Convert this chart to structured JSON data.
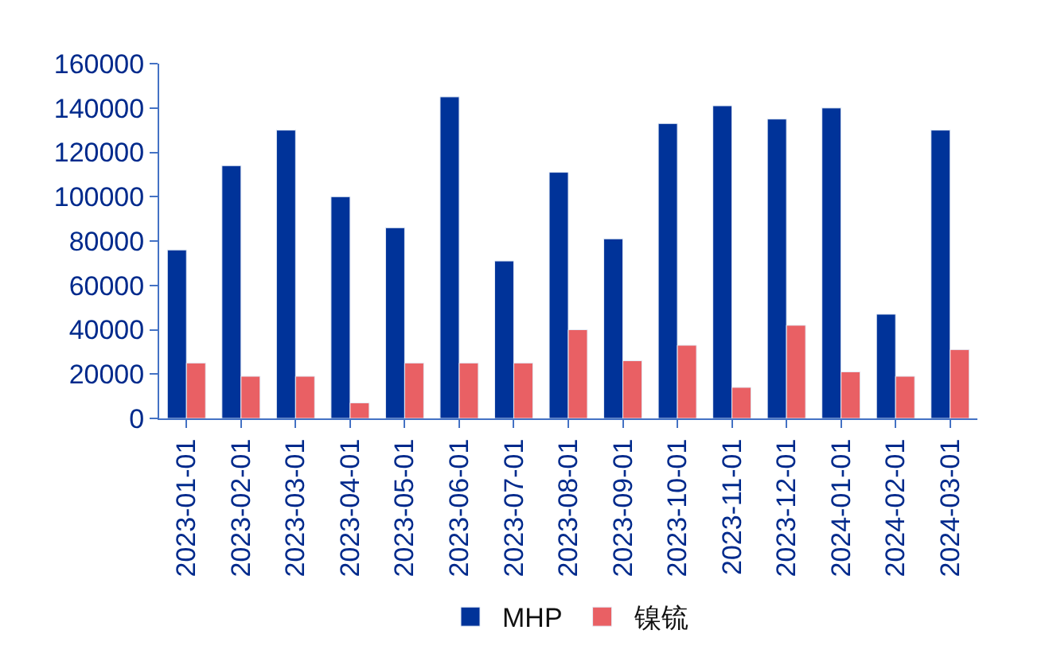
{
  "chart_data": {
    "type": "bar",
    "categories": [
      "2023-01-01",
      "2023-02-01",
      "2023-03-01",
      "2023-04-01",
      "2023-05-01",
      "2023-06-01",
      "2023-07-01",
      "2023-08-01",
      "2023-09-01",
      "2023-10-01",
      "2023-11-01",
      "2023-12-01",
      "2024-01-01",
      "2024-02-01",
      "2024-03-01"
    ],
    "series": [
      {
        "name": "MHP",
        "color": "#003399",
        "values": [
          76000,
          114000,
          130000,
          100000,
          86000,
          145000,
          71000,
          111000,
          81000,
          133000,
          141000,
          135000,
          140000,
          47000,
          130000
        ]
      },
      {
        "name": "镍锍",
        "color": "#e96064",
        "values": [
          25000,
          19000,
          19000,
          7000,
          25000,
          25000,
          25000,
          40000,
          26000,
          33000,
          14000,
          42000,
          21000,
          19000,
          31000
        ]
      }
    ],
    "ylim": [
      0,
      160000
    ],
    "yticks": [
      0,
      20000,
      40000,
      60000,
      80000,
      100000,
      120000,
      140000,
      160000
    ],
    "legend": "bottom"
  }
}
